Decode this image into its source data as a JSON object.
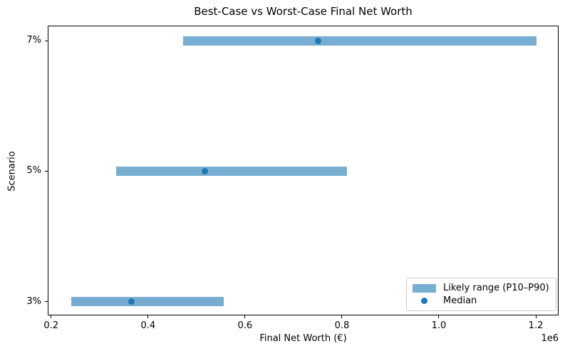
{
  "window": {
    "background": "#ffffff"
  },
  "chart_data": {
    "type": "bar",
    "subtype": "horizontal-range-bar",
    "title": "Best-Case vs Worst-Case Final Net Worth",
    "xlabel": "Final Net Worth (€)",
    "ylabel": "Scenario",
    "axis_offset_label": "1e6",
    "grid": false,
    "categories": [
      "7%",
      "5%",
      "3%"
    ],
    "rows": [
      {
        "scenario": "7%",
        "p10": 472000,
        "median": 751000,
        "p90": 1201000
      },
      {
        "scenario": "5%",
        "p10": 334000,
        "median": 517000,
        "p90": 811000
      },
      {
        "scenario": "3%",
        "p10": 241000,
        "median": 366000,
        "p90": 556000
      }
    ],
    "xlim": [
      193000,
      1247000
    ],
    "xticks": {
      "values": [
        200000,
        400000,
        600000,
        800000,
        1000000,
        1200000
      ],
      "labels": [
        "0.2",
        "0.4",
        "0.6",
        "0.8",
        "1.0",
        "1.2"
      ]
    },
    "legend": {
      "position": "lower-right",
      "items": [
        {
          "label": "Likely range (P10–P90)",
          "marker": "patch"
        },
        {
          "label": "Median",
          "marker": "dot"
        }
      ]
    },
    "colors": {
      "range_bar": "#78add2",
      "median": "#1f77b4",
      "text": "#000000",
      "spine": "#000000",
      "legend_border": "#cccccc"
    }
  }
}
